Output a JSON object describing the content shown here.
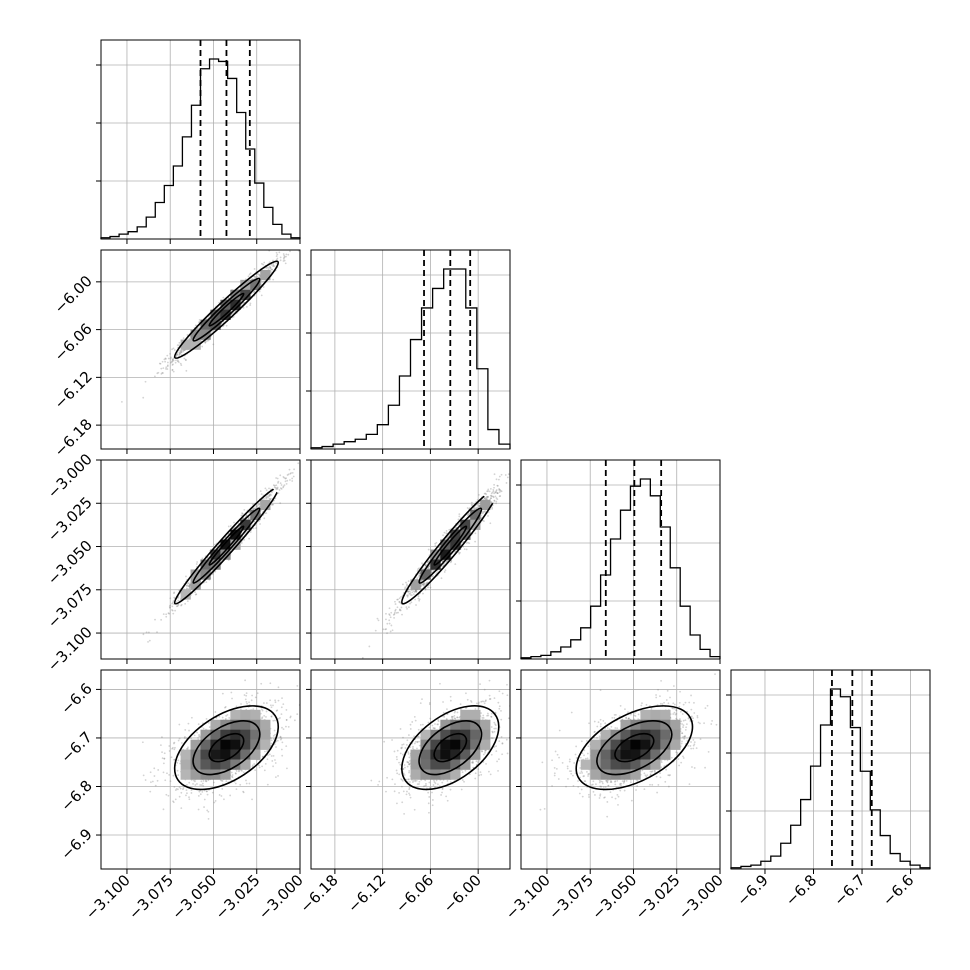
{
  "chart_data": {
    "type": "corner",
    "title": "",
    "grid": true,
    "parameters": [
      {
        "index": 0,
        "range": [
          -3.115,
          -3.0
        ],
        "median": -3.0425,
        "quantiles": [
          -3.0575,
          -3.0425,
          -3.029
        ],
        "ticks": [
          -3.1,
          -3.075,
          -3.05,
          -3.025,
          -3.0
        ],
        "tick_labels": [
          "−3.100",
          "−3.075",
          "−3.050",
          "−3.025",
          "−3.000"
        ],
        "hist_counts": [
          0.5,
          1,
          2,
          3,
          5,
          9,
          15,
          22,
          30,
          42,
          55,
          70,
          74,
          73,
          66,
          52,
          37,
          23,
          13,
          6,
          2,
          0.5
        ]
      },
      {
        "index": 1,
        "range": [
          -6.21,
          -5.96
        ],
        "median": -6.035,
        "quantiles": [
          -6.068,
          -6.035,
          -6.01
        ],
        "ticks": [
          -6.18,
          -6.12,
          -6.06,
          -6.0
        ],
        "tick_labels": [
          "−6.18",
          "−6.12",
          "−6.06",
          "−6.00"
        ],
        "hist_counts": [
          0.5,
          1,
          2,
          3,
          4,
          6,
          10,
          18,
          30,
          45,
          58,
          66,
          74,
          74,
          58,
          33,
          8,
          2
        ]
      },
      {
        "index": 2,
        "range": [
          -3.115,
          -3.0
        ],
        "median": -3.0495,
        "quantiles": [
          -3.066,
          -3.0495,
          -3.034
        ],
        "ticks": [
          -3.1,
          -3.075,
          -3.05,
          -3.025,
          -3.0
        ],
        "tick_labels": [
          "−3.100",
          "−3.075",
          "−3.050",
          "−3.025",
          "−3.000"
        ],
        "hist_counts": [
          0.5,
          1,
          1.5,
          3,
          5,
          8,
          13,
          22,
          35,
          50,
          62,
          72,
          75,
          68,
          55,
          38,
          22,
          10,
          4,
          1
        ]
      },
      {
        "index": 3,
        "range": [
          -6.97,
          -6.56
        ],
        "median": -6.72,
        "quantiles": [
          -6.762,
          -6.72,
          -6.68
        ],
        "ticks": [
          -6.9,
          -6.8,
          -6.7,
          -6.6
        ],
        "tick_labels": [
          "−6.9",
          "−6.8",
          "−6.7",
          "−6.6"
        ],
        "hist_counts": [
          0.5,
          1,
          1.5,
          3,
          5,
          10,
          17,
          27,
          40,
          56,
          70,
          67,
          55,
          38,
          23,
          13,
          6,
          3,
          1.5,
          0.5
        ]
      }
    ],
    "pairs": [
      {
        "x": 0,
        "y": 1,
        "correlation": 0.97
      },
      {
        "x": 0,
        "y": 2,
        "correlation": 0.98
      },
      {
        "x": 1,
        "y": 2,
        "correlation": 0.97
      },
      {
        "x": 0,
        "y": 3,
        "correlation": 0.5
      },
      {
        "x": 1,
        "y": 3,
        "correlation": 0.5
      },
      {
        "x": 2,
        "y": 3,
        "correlation": 0.5
      }
    ],
    "y_axis_params": [
      1,
      2,
      3
    ],
    "x_axis_params": [
      0,
      1,
      2,
      3
    ]
  }
}
